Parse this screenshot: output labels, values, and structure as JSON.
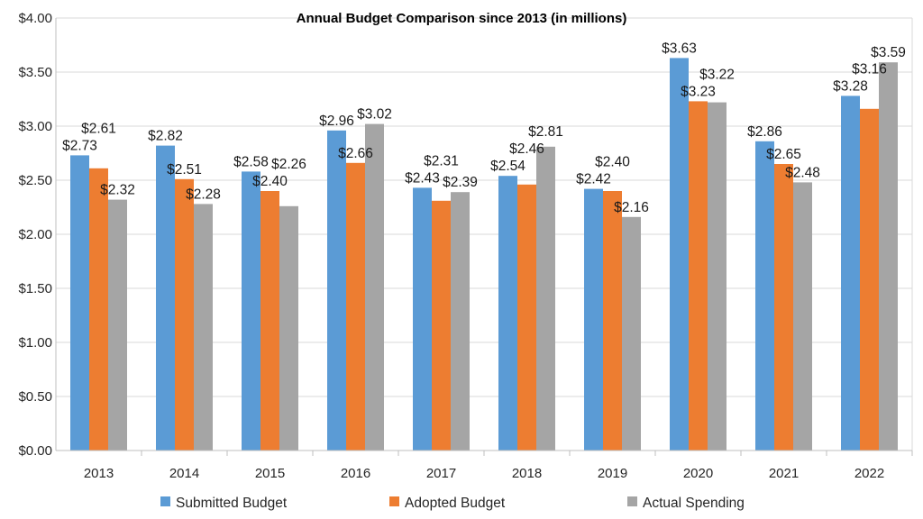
{
  "chart_data": {
    "type": "bar",
    "title": "Annual Budget Comparison since 2013  (in millions)",
    "xlabel": "",
    "ylabel": "",
    "ylim": [
      0,
      4
    ],
    "yticks": [
      0,
      0.5,
      1,
      1.5,
      2,
      2.5,
      3,
      3.5,
      4
    ],
    "ytick_labels": [
      "$0.00",
      "$0.50",
      "$1.00",
      "$1.50",
      "$2.00",
      "$2.50",
      "$3.00",
      "$3.50",
      "$4.00"
    ],
    "grid": true,
    "legend_position": "bottom",
    "categories": [
      "2013",
      "2014",
      "2015",
      "2016",
      "2017",
      "2018",
      "2019",
      "2020",
      "2021",
      "2022"
    ],
    "series": [
      {
        "name": "Submitted Budget",
        "color": "#5b9bd5",
        "values": [
          2.73,
          2.82,
          2.58,
          2.96,
          2.43,
          2.54,
          2.42,
          3.63,
          2.86,
          3.28
        ]
      },
      {
        "name": "Adopted Budget",
        "color": "#ed7d31",
        "values": [
          2.61,
          2.51,
          2.4,
          2.66,
          2.31,
          2.46,
          2.4,
          3.23,
          2.65,
          3.16
        ]
      },
      {
        "name": "Actual Spending",
        "color": "#a5a5a5",
        "values": [
          2.32,
          2.28,
          2.26,
          3.02,
          2.39,
          2.81,
          2.16,
          3.22,
          2.48,
          3.59
        ]
      }
    ]
  }
}
